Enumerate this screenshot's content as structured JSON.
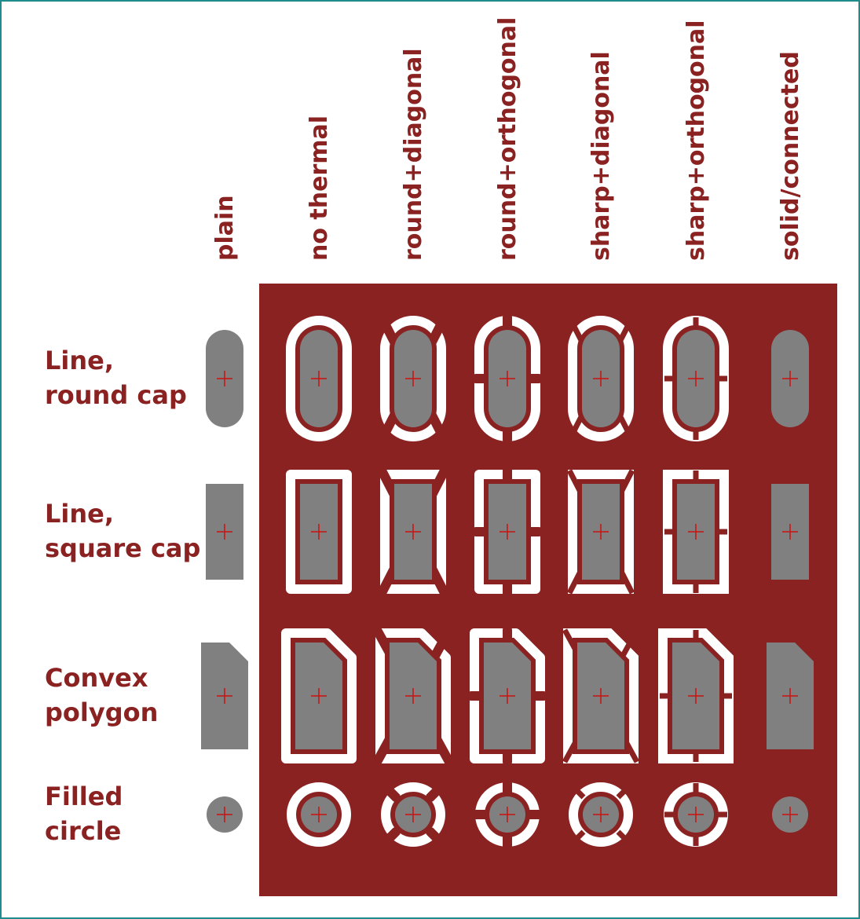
{
  "columns": [
    {
      "id": "plain",
      "label": "plain"
    },
    {
      "id": "no-thermal",
      "label": "no thermal"
    },
    {
      "id": "round-diagonal",
      "label": "round+diagonal"
    },
    {
      "id": "round-orthogonal",
      "label": "round+orthogonal"
    },
    {
      "id": "sharp-diagonal",
      "label": "sharp+diagonal"
    },
    {
      "id": "sharp-orthogonal",
      "label": "sharp+orthogonal"
    },
    {
      "id": "solid-connected",
      "label": "solid/connected"
    }
  ],
  "rows": [
    {
      "id": "line-round-cap",
      "line1": "Line,",
      "line2": "round cap",
      "shape": "oval"
    },
    {
      "id": "line-square-cap",
      "line1": "Line,",
      "line2": "square cap",
      "shape": "rect"
    },
    {
      "id": "convex-polygon",
      "line1": "Convex",
      "line2": "polygon",
      "shape": "poly"
    },
    {
      "id": "filled-circle",
      "line1": "Filled",
      "line2": "circle",
      "shape": "circle"
    }
  ],
  "colors": {
    "copper": "#8b2222",
    "pad": "#808080",
    "clearance": "#ffffff",
    "crosshair": "#cc1111",
    "label": "#8b2222",
    "frame": "#1e8c8c"
  }
}
